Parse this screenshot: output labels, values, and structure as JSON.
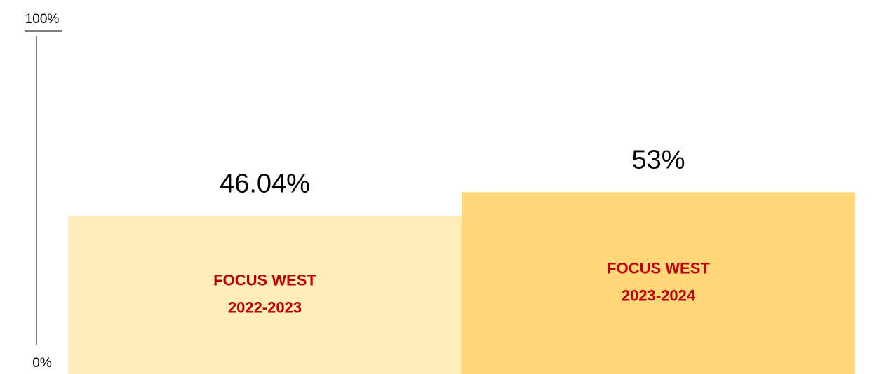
{
  "chart_data": {
    "type": "bar",
    "categories": [
      [
        "FOCUS WEST",
        "2022-2023"
      ],
      [
        "FOCUS WEST",
        "2023-2024"
      ]
    ],
    "values": [
      46.04,
      53
    ],
    "value_labels": [
      "46.04%",
      "53%"
    ],
    "colors": [
      "#feecbb",
      "#fed878"
    ],
    "label_color": "#c00000",
    "ylim": [
      0,
      100
    ],
    "yticks": [
      {
        "value": 0,
        "label": "0%"
      },
      {
        "value": 100,
        "label": "100%"
      }
    ]
  }
}
